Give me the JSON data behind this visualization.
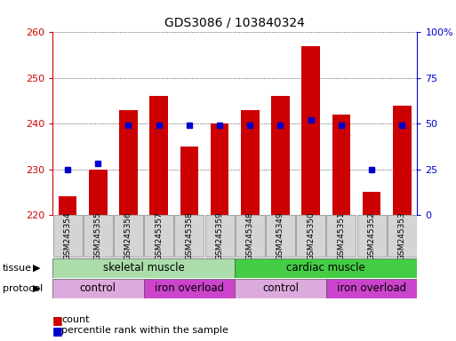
{
  "title": "GDS3086 / 103840324",
  "samples": [
    "GSM245354",
    "GSM245355",
    "GSM245356",
    "GSM245357",
    "GSM245358",
    "GSM245359",
    "GSM245348",
    "GSM245349",
    "GSM245350",
    "GSM245351",
    "GSM245352",
    "GSM245353"
  ],
  "counts": [
    224,
    230,
    243,
    246,
    235,
    240,
    243,
    246,
    257,
    242,
    225,
    244
  ],
  "percentile_ranks": [
    25,
    28,
    49,
    49,
    49,
    49,
    49,
    49,
    52,
    49,
    25,
    49
  ],
  "ylim_left": [
    220,
    260
  ],
  "ylim_right": [
    0,
    100
  ],
  "yticks_left": [
    220,
    230,
    240,
    250,
    260
  ],
  "yticks_right": [
    0,
    25,
    50,
    75,
    100
  ],
  "bar_color": "#cc0000",
  "dot_color": "#0000cc",
  "bar_bottom": 220,
  "tissue_skeletal_color": "#aaddaa",
  "tissue_cardiac_color": "#44cc44",
  "protocol_control_color": "#ddaadd",
  "protocol_iron_color": "#cc44cc",
  "tissue_groups": [
    {
      "label": "skeletal muscle",
      "start": 0,
      "end": 6
    },
    {
      "label": "cardiac muscle",
      "start": 6,
      "end": 12
    }
  ],
  "protocol_groups": [
    {
      "label": "control",
      "start": 0,
      "end": 3
    },
    {
      "label": "iron overload",
      "start": 3,
      "end": 6
    },
    {
      "label": "control",
      "start": 6,
      "end": 9
    },
    {
      "label": "iron overload",
      "start": 9,
      "end": 12
    }
  ],
  "left_axis_color": "#cc0000",
  "right_axis_color": "#0000cc",
  "bg_color": "#ffffff",
  "fig_width": 5.13,
  "fig_height": 3.84,
  "dpi": 100
}
